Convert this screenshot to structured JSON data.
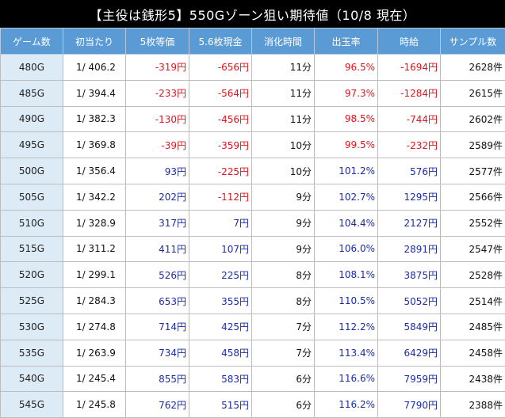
{
  "title": "【主役は銭形5】550Gゾーン狙い期待値（10/8 現在）",
  "headers": [
    "ゲーム数",
    "初当たり",
    "5枚等価",
    "5.6枚現金",
    "消化時間",
    "出玉率",
    "時給",
    "サンプル数"
  ],
  "colors": {
    "negative": "#e0141e",
    "positive": "#1c2ba8",
    "header_bg": "#5b9bd5",
    "game_col_bg": "#ddebf7"
  },
  "rows": [
    {
      "game": "480G",
      "hit": "1/ 406.2",
      "eq5": "-319円",
      "cash56": "-656円",
      "time": "11分",
      "rate": "96.5%",
      "wage": "-1694円",
      "samples": "2628件",
      "eq5_sign": "neg",
      "cash56_sign": "neg",
      "rate_sign": "neg",
      "wage_sign": "neg"
    },
    {
      "game": "485G",
      "hit": "1/ 394.4",
      "eq5": "-233円",
      "cash56": "-564円",
      "time": "11分",
      "rate": "97.3%",
      "wage": "-1284円",
      "samples": "2615件",
      "eq5_sign": "neg",
      "cash56_sign": "neg",
      "rate_sign": "neg",
      "wage_sign": "neg"
    },
    {
      "game": "490G",
      "hit": "1/ 382.3",
      "eq5": "-130円",
      "cash56": "-456円",
      "time": "11分",
      "rate": "98.5%",
      "wage": "-744円",
      "samples": "2602件",
      "eq5_sign": "neg",
      "cash56_sign": "neg",
      "rate_sign": "neg",
      "wage_sign": "neg"
    },
    {
      "game": "495G",
      "hit": "1/ 369.8",
      "eq5": "-39円",
      "cash56": "-359円",
      "time": "10分",
      "rate": "99.5%",
      "wage": "-232円",
      "samples": "2589件",
      "eq5_sign": "neg",
      "cash56_sign": "neg",
      "rate_sign": "neg",
      "wage_sign": "neg"
    },
    {
      "game": "500G",
      "hit": "1/ 356.4",
      "eq5": "93円",
      "cash56": "-225円",
      "time": "10分",
      "rate": "101.2%",
      "wage": "576円",
      "samples": "2577件",
      "eq5_sign": "pos",
      "cash56_sign": "neg",
      "rate_sign": "pos",
      "wage_sign": "pos"
    },
    {
      "game": "505G",
      "hit": "1/ 342.2",
      "eq5": "202円",
      "cash56": "-112円",
      "time": "9分",
      "rate": "102.7%",
      "wage": "1295円",
      "samples": "2566件",
      "eq5_sign": "pos",
      "cash56_sign": "neg",
      "rate_sign": "pos",
      "wage_sign": "pos"
    },
    {
      "game": "510G",
      "hit": "1/ 328.9",
      "eq5": "317円",
      "cash56": "7円",
      "time": "9分",
      "rate": "104.4%",
      "wage": "2127円",
      "samples": "2552件",
      "eq5_sign": "pos",
      "cash56_sign": "pos",
      "rate_sign": "pos",
      "wage_sign": "pos"
    },
    {
      "game": "515G",
      "hit": "1/ 311.2",
      "eq5": "411円",
      "cash56": "107円",
      "time": "9分",
      "rate": "106.0%",
      "wage": "2891円",
      "samples": "2547件",
      "eq5_sign": "pos",
      "cash56_sign": "pos",
      "rate_sign": "pos",
      "wage_sign": "pos"
    },
    {
      "game": "520G",
      "hit": "1/ 299.1",
      "eq5": "526円",
      "cash56": "225円",
      "time": "8分",
      "rate": "108.1%",
      "wage": "3875円",
      "samples": "2528件",
      "eq5_sign": "pos",
      "cash56_sign": "pos",
      "rate_sign": "pos",
      "wage_sign": "pos"
    },
    {
      "game": "525G",
      "hit": "1/ 284.3",
      "eq5": "653円",
      "cash56": "355円",
      "time": "8分",
      "rate": "110.5%",
      "wage": "5052円",
      "samples": "2514件",
      "eq5_sign": "pos",
      "cash56_sign": "pos",
      "rate_sign": "pos",
      "wage_sign": "pos"
    },
    {
      "game": "530G",
      "hit": "1/ 274.8",
      "eq5": "714円",
      "cash56": "425円",
      "time": "7分",
      "rate": "112.2%",
      "wage": "5849円",
      "samples": "2485件",
      "eq5_sign": "pos",
      "cash56_sign": "pos",
      "rate_sign": "pos",
      "wage_sign": "pos"
    },
    {
      "game": "535G",
      "hit": "1/ 263.9",
      "eq5": "734円",
      "cash56": "458円",
      "time": "7分",
      "rate": "113.4%",
      "wage": "6429円",
      "samples": "2458件",
      "eq5_sign": "pos",
      "cash56_sign": "pos",
      "rate_sign": "pos",
      "wage_sign": "pos"
    },
    {
      "game": "540G",
      "hit": "1/ 245.4",
      "eq5": "855円",
      "cash56": "583円",
      "time": "6分",
      "rate": "116.6%",
      "wage": "7959円",
      "samples": "2438件",
      "eq5_sign": "pos",
      "cash56_sign": "pos",
      "rate_sign": "pos",
      "wage_sign": "pos"
    },
    {
      "game": "545G",
      "hit": "1/ 245.8",
      "eq5": "762円",
      "cash56": "515円",
      "time": "6分",
      "rate": "116.2%",
      "wage": "7790円",
      "samples": "2388件",
      "eq5_sign": "pos",
      "cash56_sign": "pos",
      "rate_sign": "pos",
      "wage_sign": "pos"
    }
  ]
}
